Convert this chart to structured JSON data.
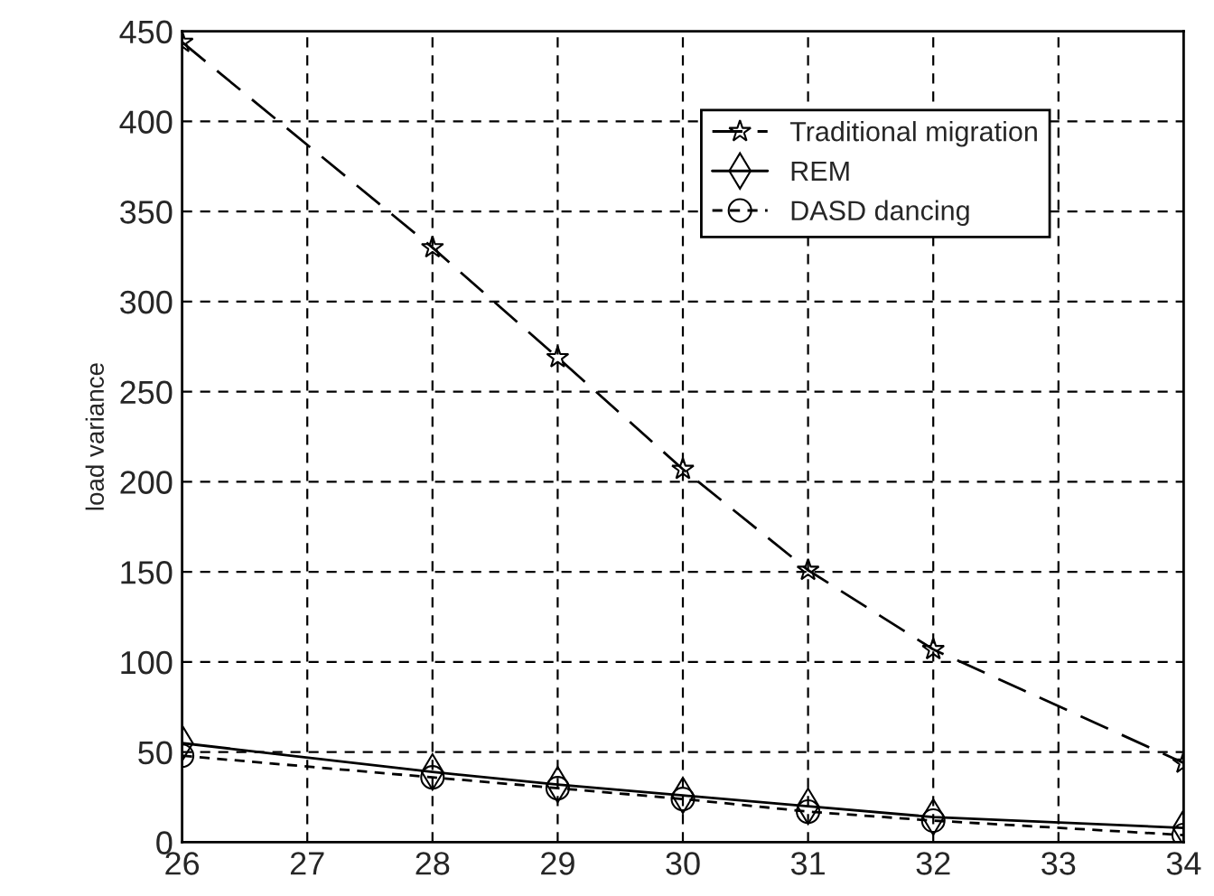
{
  "chart_data": {
    "type": "line",
    "ylabel": "load variance",
    "x": [
      26,
      28,
      29,
      30,
      31,
      32,
      34
    ],
    "series": [
      {
        "name": "Traditional migration",
        "color": "#000000",
        "marker": "star",
        "line_style": "dashed",
        "values": [
          444,
          330,
          269,
          207,
          151,
          107,
          44
        ]
      },
      {
        "name": "REM",
        "color": "#000000",
        "marker": "diamond",
        "line_style": "solid",
        "values": [
          55,
          39,
          32,
          26,
          20,
          14,
          8
        ]
      },
      {
        "name": "DASD dancing",
        "color": "#000000",
        "marker": "circle",
        "line_style": "dotted",
        "values": [
          48,
          36,
          30,
          24,
          17,
          12,
          4
        ]
      }
    ],
    "xlim": [
      26,
      34
    ],
    "xticks": [
      26,
      27,
      28,
      29,
      30,
      31,
      32,
      33,
      34
    ],
    "ylim": [
      0,
      450
    ],
    "yticks": [
      0,
      50,
      100,
      150,
      200,
      250,
      300,
      350,
      400,
      450
    ],
    "grid": true,
    "legend": "top right"
  }
}
